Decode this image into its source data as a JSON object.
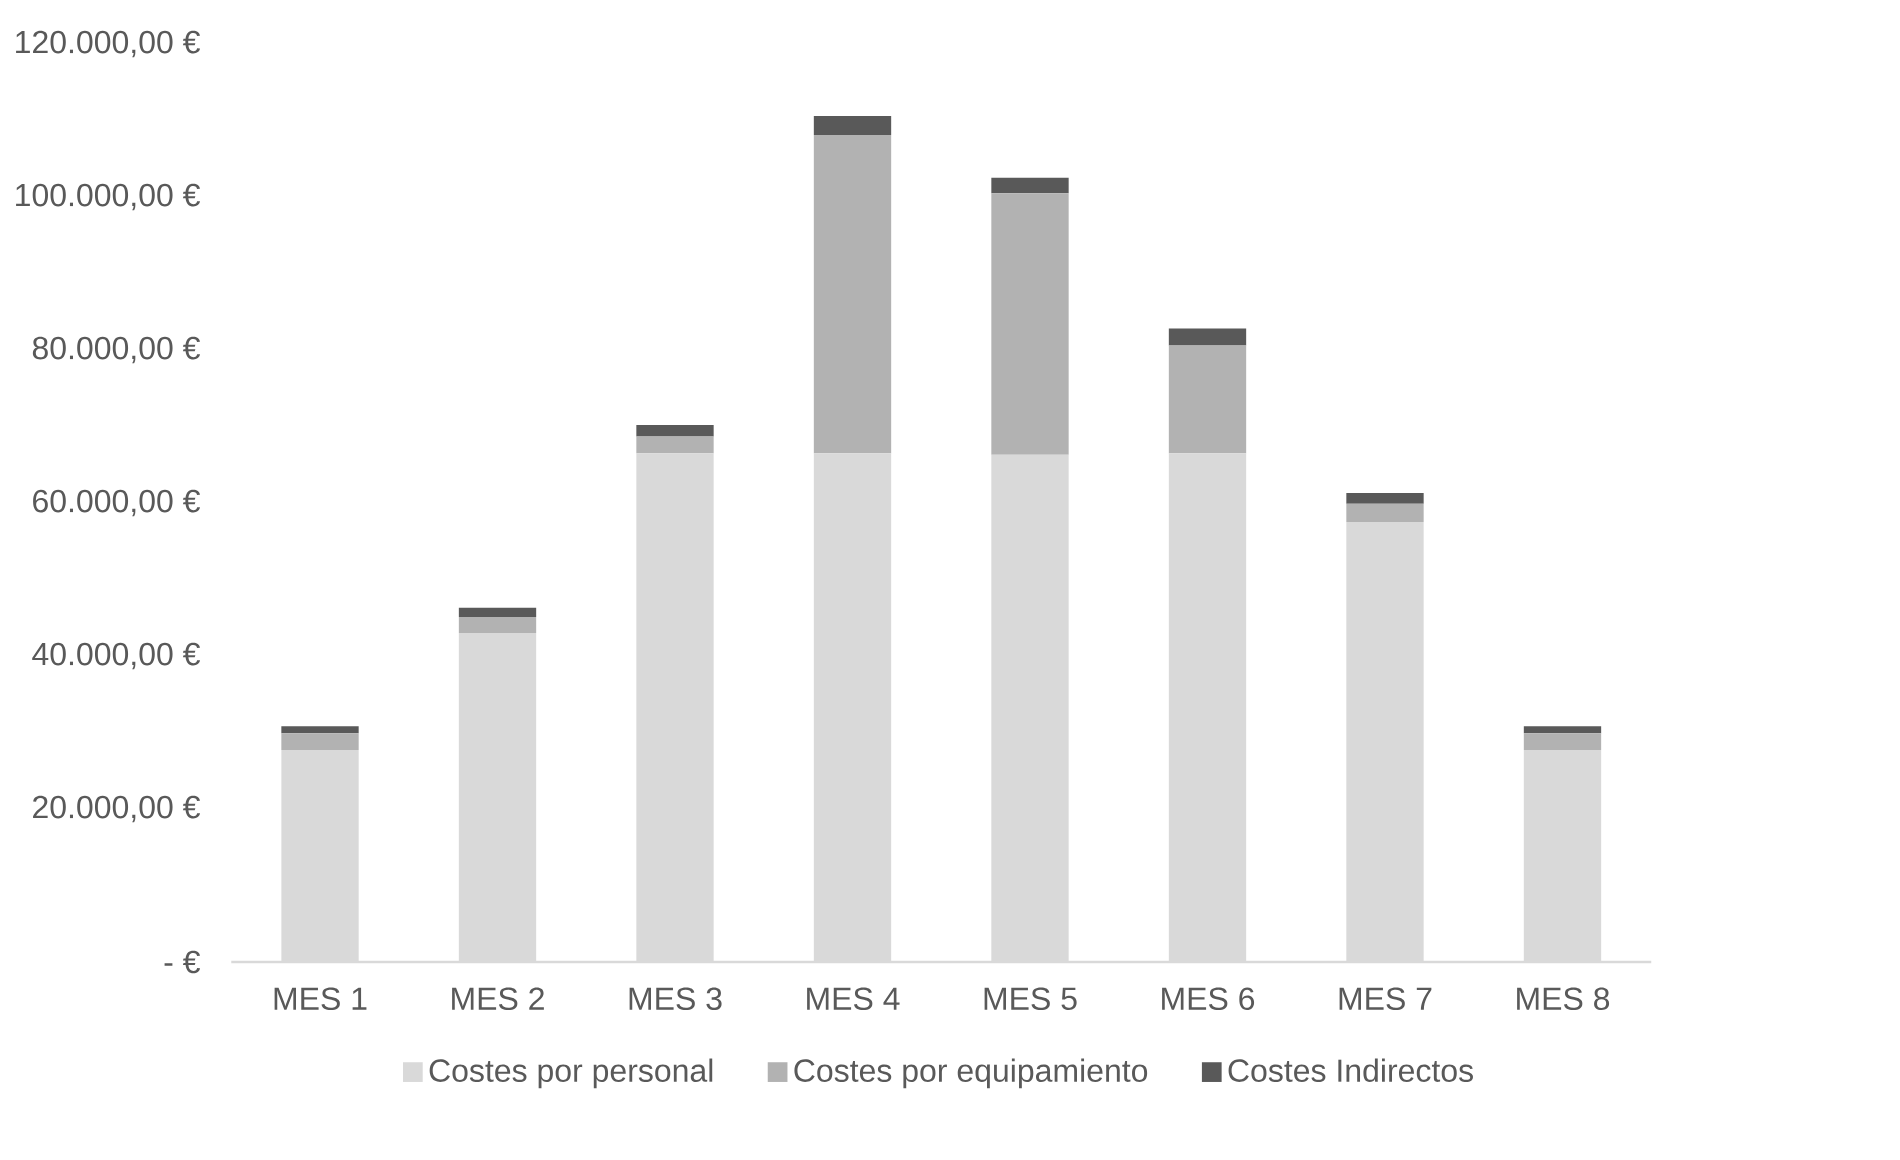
{
  "chart_data": {
    "type": "bar",
    "stacked": true,
    "categories": [
      "MES 1",
      "MES 2",
      "MES 3",
      "MES 4",
      "MES 5",
      "MES 6",
      "MES 7",
      "MES 8"
    ],
    "series": [
      {
        "name": "Costes por personal",
        "color": "#d9d9d9",
        "values": [
          27700,
          43000,
          66500,
          66500,
          66300,
          66500,
          57500,
          27700
        ]
      },
      {
        "name": "Costes por equipamiento",
        "color": "#b2b2b2",
        "values": [
          2200,
          2100,
          2200,
          41600,
          34200,
          14100,
          2400,
          2200
        ]
      },
      {
        "name": "Costes Indirectos",
        "color": "#595959",
        "values": [
          900,
          1200,
          1500,
          2500,
          2000,
          2200,
          1400,
          900
        ]
      }
    ],
    "ylim": [
      0,
      120000
    ],
    "yticks": [
      {
        "value": 0,
        "label": "-  €"
      },
      {
        "value": 20000,
        "label": "20.000,00 €"
      },
      {
        "value": 40000,
        "label": "40.000,00 €"
      },
      {
        "value": 60000,
        "label": "60.000,00 €"
      },
      {
        "value": 80000,
        "label": "80.000,00 €"
      },
      {
        "value": 100000,
        "label": "100.000,00 €"
      },
      {
        "value": 120000,
        "label": "120.000,00 €"
      }
    ],
    "grid": false,
    "legend": "bottom"
  }
}
